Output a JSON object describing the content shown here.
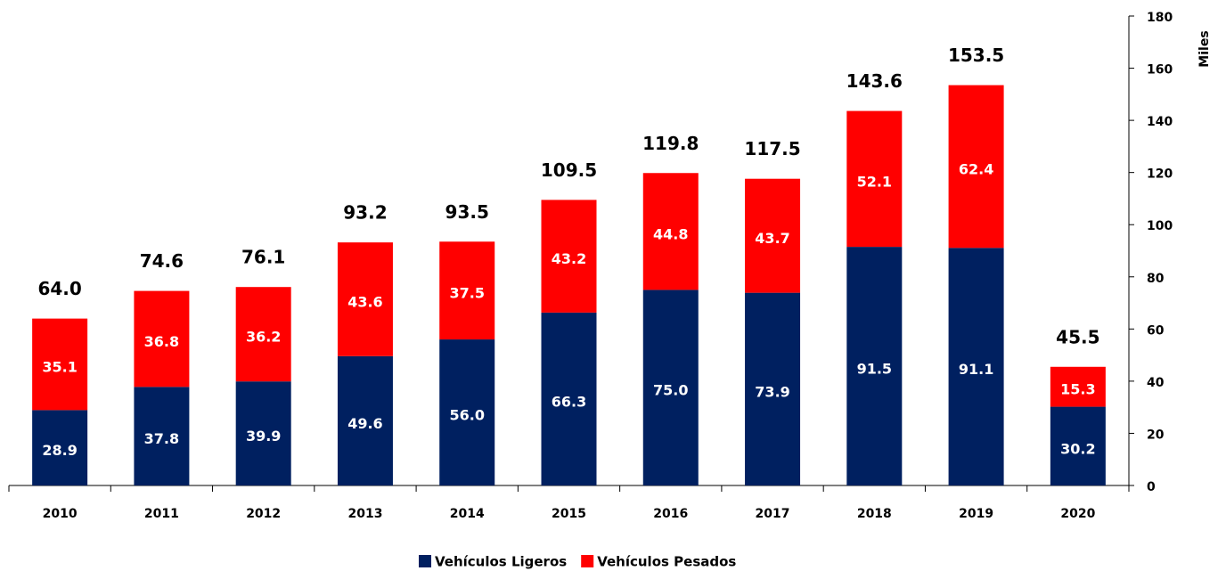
{
  "chart_data": {
    "type": "stacked_bar",
    "categories": [
      "2010",
      "2011",
      "2012",
      "2013",
      "2014",
      "2015",
      "2016",
      "2017",
      "2018",
      "2019",
      "2020"
    ],
    "series": [
      {
        "name": "Vehículos Ligeros",
        "color": "#002060",
        "values": [
          28.9,
          37.8,
          39.9,
          49.6,
          56.0,
          66.3,
          75.0,
          73.9,
          91.5,
          91.1,
          30.2
        ],
        "value_labels": [
          "28.9",
          "37.8",
          "39.9",
          "49.6",
          "56.0",
          "66.3",
          "75.0",
          "73.9",
          "91.5",
          "91.1",
          "30.2"
        ]
      },
      {
        "name": "Vehículos Pesados",
        "color": "#ff0000",
        "values": [
          35.1,
          36.8,
          36.2,
          43.6,
          37.5,
          43.2,
          44.8,
          43.7,
          52.1,
          62.4,
          15.3
        ],
        "value_labels": [
          "35.1",
          "36.8",
          "36.2",
          "43.6",
          "37.5",
          "43.2",
          "44.8",
          "43.7",
          "52.1",
          "62.4",
          "15.3"
        ]
      }
    ],
    "total_labels": [
      "64.0",
      "74.6",
      "76.1",
      "93.2",
      "93.5",
      "109.5",
      "119.8",
      "117.5",
      "143.6",
      "153.5",
      "45.5"
    ],
    "y_axis_label": "Miles",
    "y_axis_side": "right",
    "ylim": [
      0,
      180
    ],
    "yticks": [
      0,
      20,
      40,
      60,
      80,
      100,
      120,
      140,
      160,
      180
    ],
    "grid": false,
    "legend": "bottom"
  }
}
